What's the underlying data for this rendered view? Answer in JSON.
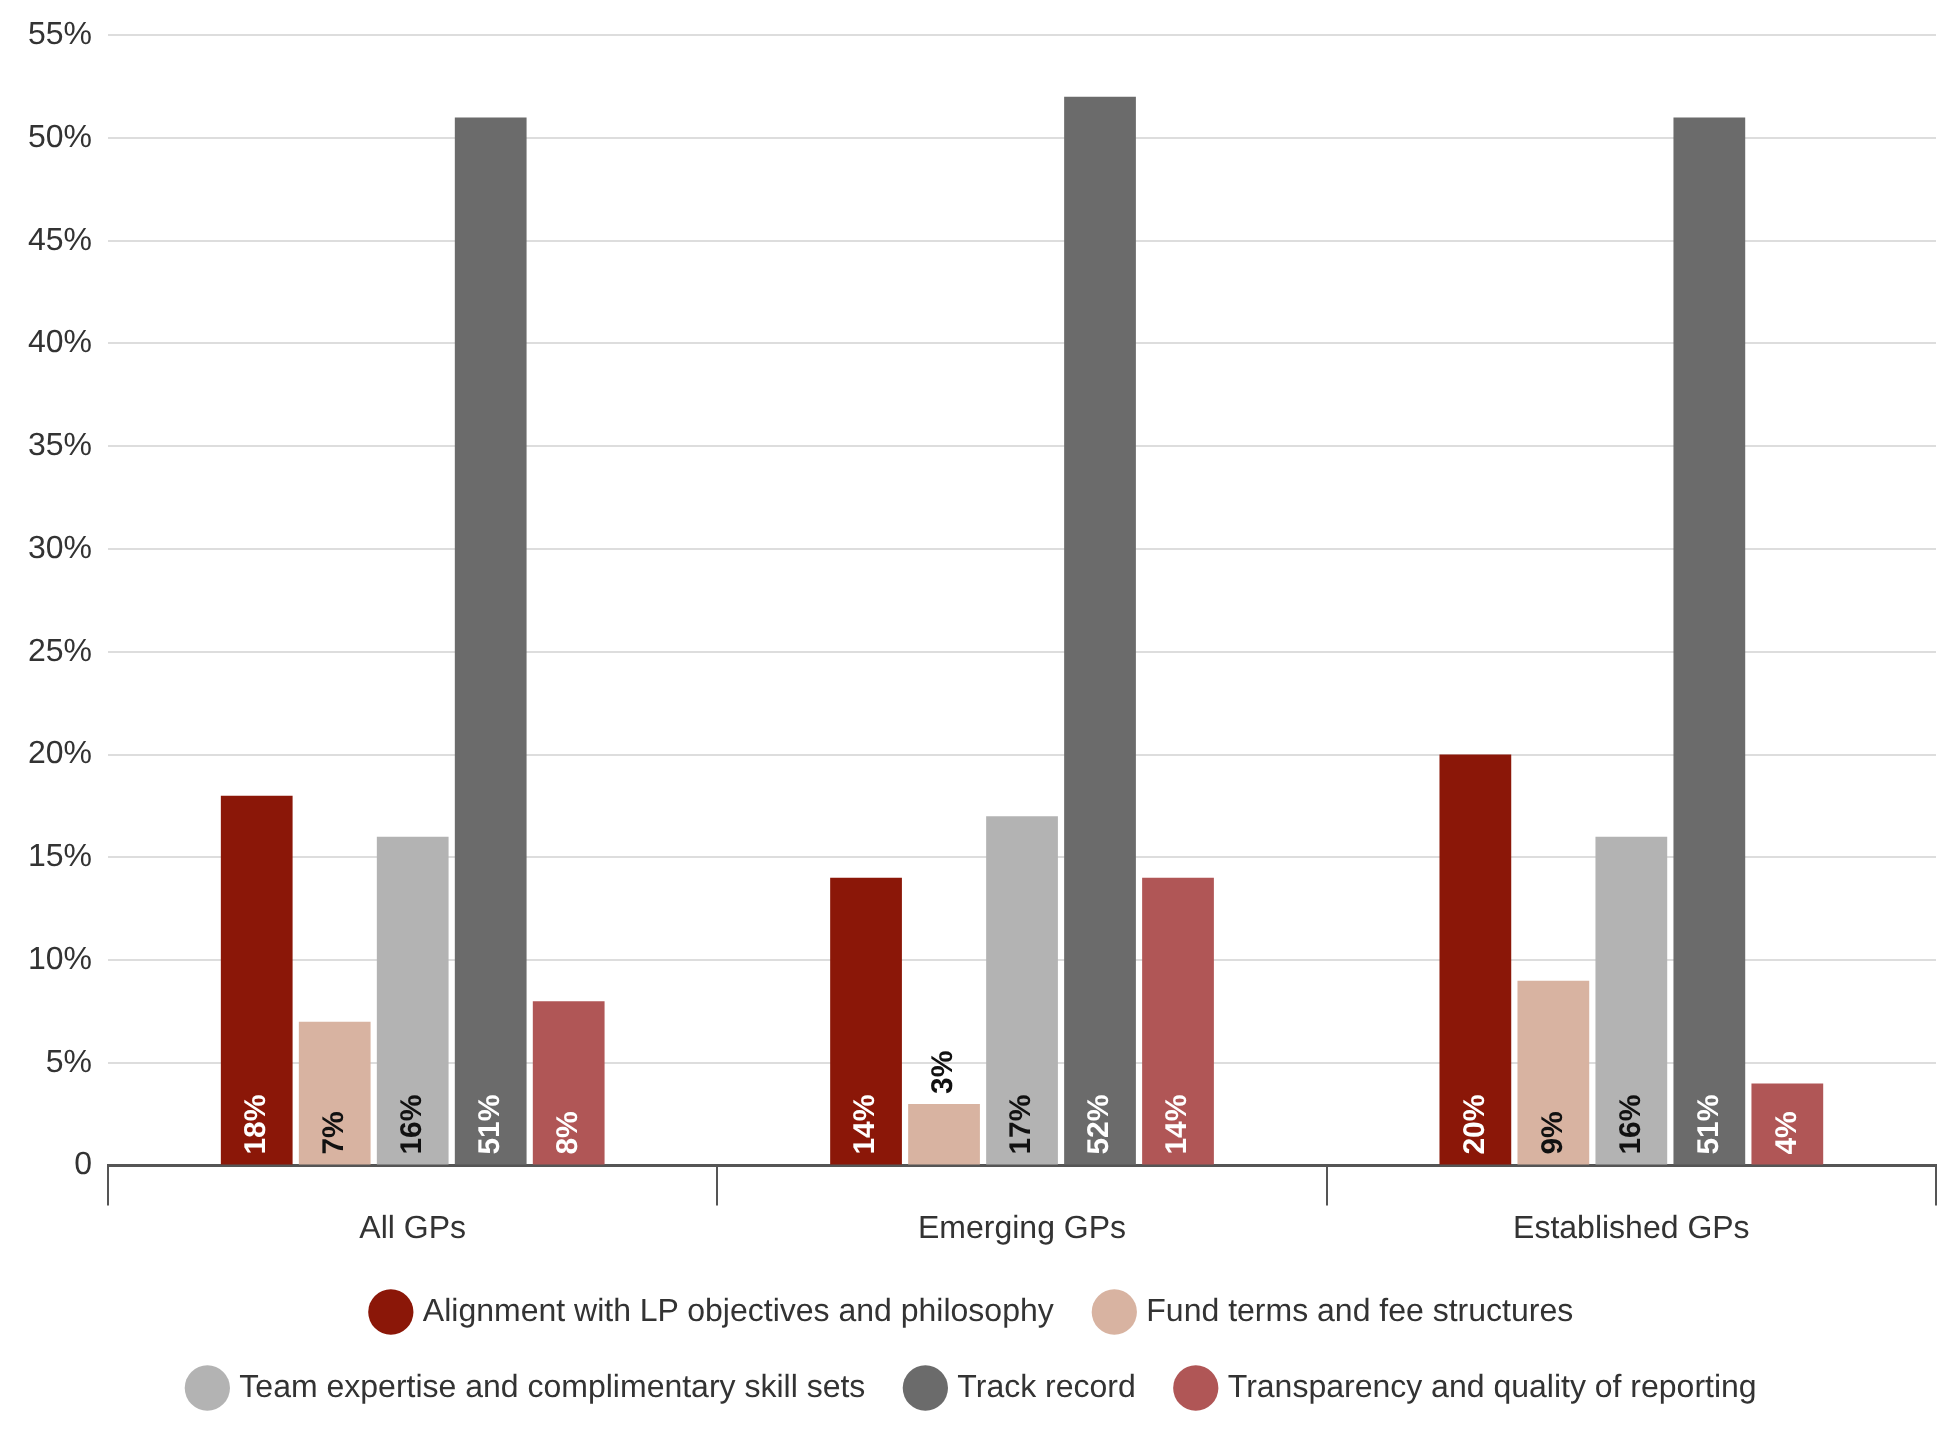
{
  "chart_data": {
    "type": "bar",
    "categories": [
      "All GPs",
      "Emerging GPs",
      "Established GPs"
    ],
    "series": [
      {
        "name": "Alignment with LP objectives and philosophy",
        "color": "#8b1708",
        "values": [
          18,
          14,
          20
        ],
        "value_labels": [
          "18%",
          "14%",
          "20%"
        ]
      },
      {
        "name": "Fund terms and fee structures",
        "color": "#d8b3a1",
        "values": [
          7,
          3,
          9
        ],
        "value_labels": [
          "7%",
          "3%",
          "9%"
        ]
      },
      {
        "name": "Team expertise and complimentary skill sets",
        "color": "#b3b3b3",
        "values": [
          16,
          17,
          16
        ],
        "value_labels": [
          "16%",
          "17%",
          "16%"
        ]
      },
      {
        "name": "Track record",
        "color": "#6b6b6b",
        "values": [
          51,
          52,
          51
        ],
        "value_labels": [
          "51%",
          "52%",
          "51%"
        ]
      },
      {
        "name": "Transparency and quality of reporting",
        "color": "#b05656",
        "values": [
          8,
          14,
          4
        ],
        "value_labels": [
          "8%",
          "14%",
          "4%"
        ]
      }
    ],
    "ylim": [
      0,
      55
    ],
    "yticks": [
      {
        "value": 0,
        "label": "0"
      },
      {
        "value": 5,
        "label": "5%"
      },
      {
        "value": 10,
        "label": "10%"
      },
      {
        "value": 15,
        "label": "15%"
      },
      {
        "value": 20,
        "label": "20%"
      },
      {
        "value": 25,
        "label": "25%"
      },
      {
        "value": 30,
        "label": "30%"
      },
      {
        "value": 35,
        "label": "35%"
      },
      {
        "value": 40,
        "label": "40%"
      },
      {
        "value": 45,
        "label": "45%"
      },
      {
        "value": 50,
        "label": "50%"
      },
      {
        "value": 55,
        "label": "55%"
      }
    ],
    "grid": "y",
    "legend": "bottom",
    "marker": "circle"
  }
}
